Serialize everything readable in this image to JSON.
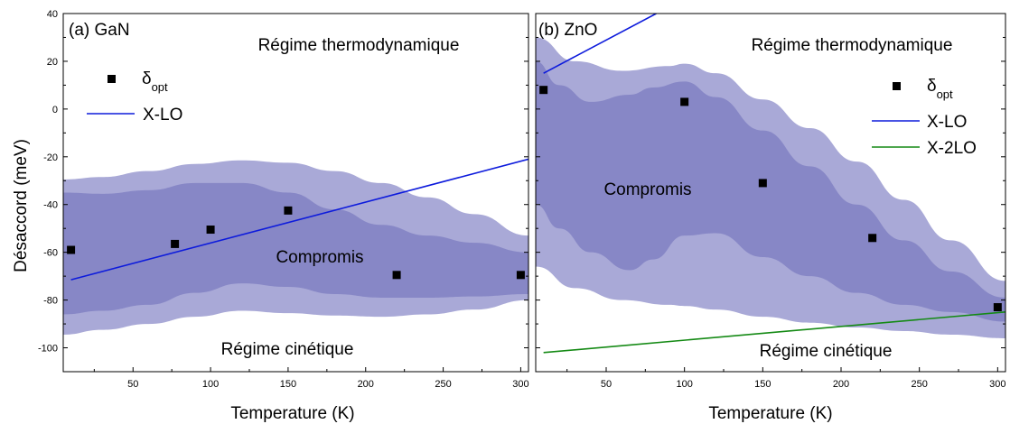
{
  "colors": {
    "band_outer": "#a9a9d7",
    "band_inner": "#8787c6",
    "marker": "#000000",
    "xlo_line": "#0d1bdc",
    "x2lo_line": "#158a15"
  },
  "figure": {
    "ylabel": "Désaccord (meV)"
  },
  "chart_data": [
    {
      "type": "scatter",
      "panel_label": "(a) GaN",
      "xlabel": "Temperature (K)",
      "ylabel": "Désaccord (meV)",
      "xlim": [
        5,
        305
      ],
      "ylim": [
        -110,
        40
      ],
      "xticks": [
        50,
        100,
        150,
        200,
        250,
        300
      ],
      "yticks": [
        40,
        20,
        0,
        -20,
        -40,
        -60,
        -80,
        -100
      ],
      "grid": false,
      "legend_position": "top-left",
      "annotations": {
        "top": "Régime thermodynamique",
        "middle": "Compromis",
        "bottom": "Régime cinétique"
      },
      "legend": {
        "delta_symbol": "δ",
        "delta_sub": "opt",
        "xlo": "X-LO"
      },
      "series": [
        {
          "name": "δopt",
          "kind": "points",
          "x": [
            10,
            77,
            100,
            150,
            220,
            300
          ],
          "y": [
            -59,
            -56.5,
            -50.5,
            -42.5,
            -69.5,
            -69.5
          ]
        },
        {
          "name": "X-LO",
          "kind": "line",
          "x": [
            10,
            305
          ],
          "y": [
            -71.5,
            -21
          ]
        }
      ],
      "bands": [
        {
          "role": "outer",
          "x": [
            5,
            30,
            60,
            90,
            120,
            150,
            180,
            210,
            240,
            270,
            305
          ],
          "upper": [
            -29.5,
            -28.5,
            -26,
            -23,
            -21.5,
            -22.5,
            -26,
            -31,
            -37,
            -44,
            -53
          ],
          "lower": [
            -94.5,
            -92.5,
            -90,
            -87,
            -84.5,
            -85.5,
            -86.5,
            -87,
            -86,
            -84,
            -80
          ]
        },
        {
          "role": "inner",
          "x": [
            5,
            30,
            60,
            90,
            120,
            150,
            180,
            210,
            240,
            270,
            305
          ],
          "upper": [
            -35,
            -35.5,
            -34,
            -31,
            -31,
            -35,
            -42,
            -48.5,
            -53,
            -56,
            -60
          ],
          "lower": [
            -86,
            -84.5,
            -82,
            -77,
            -73,
            -74.5,
            -77.5,
            -79,
            -79,
            -78.5,
            -77.5
          ]
        }
      ]
    },
    {
      "type": "scatter",
      "panel_label": "(b) ZnO",
      "xlabel": "Temperature (K)",
      "ylabel": "Désaccord (meV)",
      "xlim": [
        5,
        305
      ],
      "ylim": [
        -110,
        40
      ],
      "xticks": [
        50,
        100,
        150,
        200,
        250,
        300
      ],
      "yticks": [
        40,
        20,
        0,
        -20,
        -40,
        -60,
        -80,
        -100
      ],
      "grid": false,
      "legend_position": "right",
      "annotations": {
        "top": "Régime thermodynamique",
        "middle": "Compromis",
        "bottom": "Régime cinétique"
      },
      "legend": {
        "delta_symbol": "δ",
        "delta_sub": "opt",
        "xlo": "X-LO",
        "x2lo": "X-2LO"
      },
      "series": [
        {
          "name": "δopt",
          "kind": "points",
          "x": [
            10,
            100,
            150,
            220,
            300
          ],
          "y": [
            8,
            3,
            -31,
            -54,
            -83
          ]
        },
        {
          "name": "X-LO",
          "kind": "line",
          "x": [
            10,
            82
          ],
          "y": [
            15,
            40
          ]
        },
        {
          "name": "X-2LO",
          "kind": "line",
          "x": [
            10,
            305
          ],
          "y": [
            -102,
            -85
          ]
        }
      ],
      "bands": [
        {
          "role": "outer",
          "x": [
            5,
            30,
            60,
            90,
            100,
            120,
            150,
            180,
            210,
            240,
            270,
            305
          ],
          "upper": [
            30,
            20,
            16,
            18,
            19,
            15,
            4,
            -8,
            -22,
            -38,
            -55,
            -72
          ],
          "lower": [
            -66,
            -75,
            -80,
            -82,
            -82.5,
            -84,
            -87,
            -89.5,
            -91.5,
            -93,
            -94.5,
            -96
          ]
        },
        {
          "role": "inner",
          "x": [
            5,
            20,
            40,
            65,
            80,
            100,
            120,
            150,
            180,
            210,
            240,
            270,
            305
          ],
          "upper": [
            20,
            10,
            3,
            6,
            9,
            11.5,
            5,
            -9,
            -24,
            -40,
            -55,
            -68,
            -79
          ],
          "lower": [
            -40,
            -50,
            -60,
            -67.5,
            -63,
            -53,
            -52,
            -62,
            -70,
            -77,
            -82,
            -85,
            -89
          ]
        }
      ]
    }
  ]
}
